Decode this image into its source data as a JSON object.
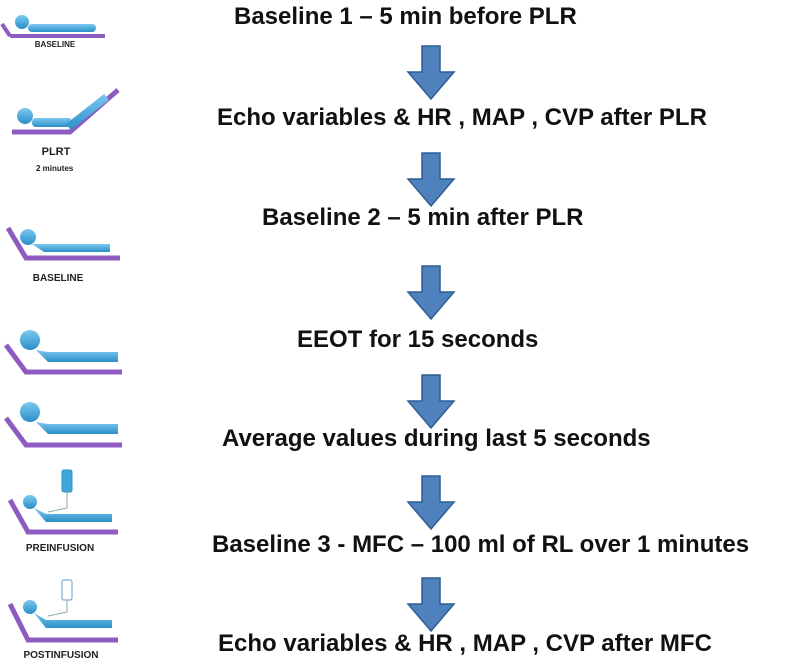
{
  "steps": [
    {
      "text": "Baseline 1 – 5 min before PLR"
    },
    {
      "text": "Echo variables  & HR , MAP , CVP after PLR"
    },
    {
      "text": "Baseline 2 – 5 min after PLR"
    },
    {
      "text": "EEOT for 15 seconds"
    },
    {
      "text": "Average values during last 5 seconds"
    },
    {
      "text": "Baseline 3 -   MFC  – 100 ml of RL over 1 minutes"
    },
    {
      "text": "Echo variables  & HR , MAP , CVP after MFC"
    }
  ],
  "icon_labels": {
    "baseline_1": "BASELINE",
    "plrt": "PLRT",
    "plrt_sub": "2 minutes",
    "baseline_2": "BASELINE",
    "preinfusion": "PREINFUSION",
    "postinfusion": "POSTINFUSION"
  },
  "colors": {
    "arrow_fill": "#4f81bd",
    "arrow_stroke": "#2f5d95",
    "bed": "#8e5cc0",
    "patient": "#3fa7dc",
    "text": "#111111"
  }
}
